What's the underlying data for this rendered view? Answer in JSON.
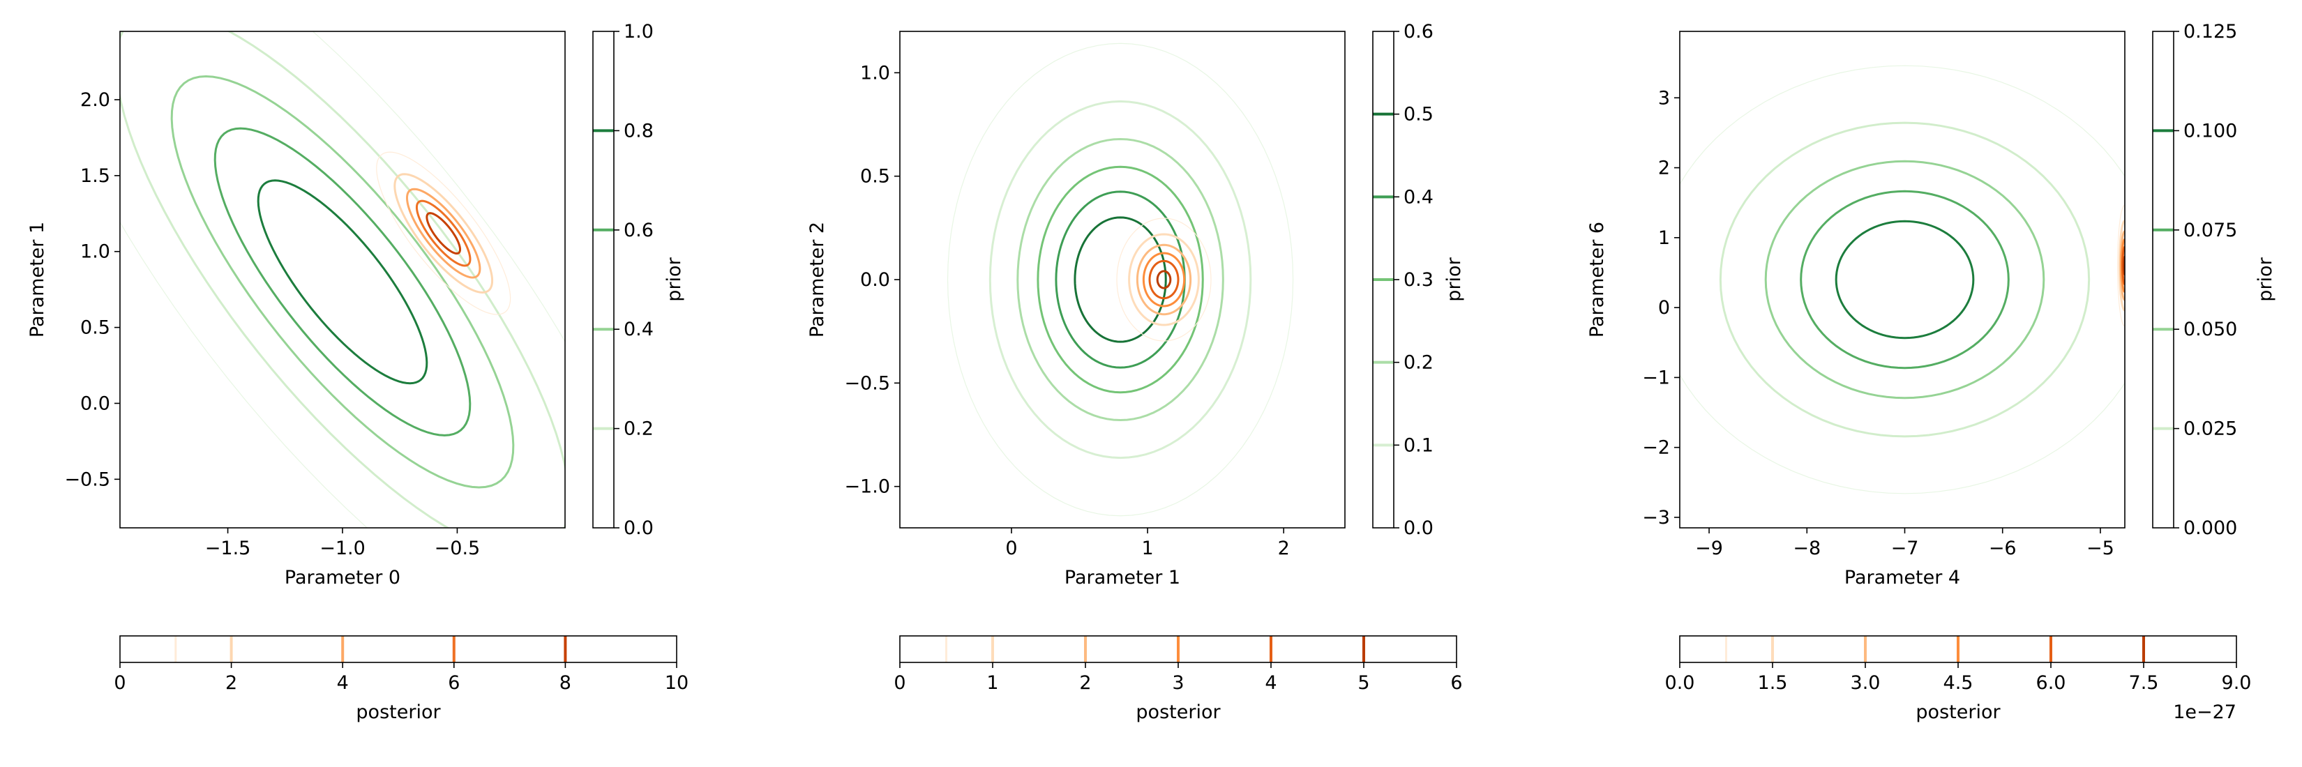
{
  "chart_data": [
    {
      "type": "contour",
      "xlabel": "Parameter 0",
      "ylabel": "Parameter 1",
      "xlim": [
        -1.97,
        -0.03
      ],
      "ylim": [
        -0.82,
        2.45
      ],
      "xticks": [
        -1.5,
        -1.0,
        -0.5
      ],
      "xtick_labels": [
        "−1.5",
        "−1.0",
        "−0.5"
      ],
      "yticks": [
        -0.5,
        0.0,
        0.5,
        1.0,
        1.5,
        2.0
      ],
      "ytick_labels": [
        "−0.5",
        "0.0",
        "0.5",
        "1.0",
        "1.5",
        "2.0"
      ],
      "prior": {
        "label": "prior",
        "colormap": "greens",
        "range": [
          0.0,
          1.0
        ],
        "ticks": [
          0.0,
          0.2,
          0.4,
          0.6,
          0.8,
          1.0
        ],
        "tick_labels": [
          "0.0",
          "0.2",
          "0.4",
          "0.6",
          "0.8",
          "1.0"
        ],
        "levels": [
          0.2,
          0.4,
          0.6,
          0.8
        ],
        "center": [
          -1.0,
          0.8
        ],
        "sigma": [
          0.55,
          1.0
        ],
        "rho": -0.8
      },
      "posterior": {
        "label": "posterior",
        "colormap": "oranges",
        "range": [
          0,
          10
        ],
        "ticks": [
          0,
          2,
          4,
          6,
          8,
          10
        ],
        "tick_labels": [
          "0",
          "2",
          "4",
          "6",
          "8",
          "10"
        ],
        "levels": [
          2,
          4,
          6,
          8
        ],
        "center": [
          -0.56,
          1.12
        ],
        "sigma": [
          0.12,
          0.22
        ],
        "rho": -0.8,
        "peak": 9.6
      }
    },
    {
      "type": "contour",
      "xlabel": "Parameter 1",
      "ylabel": "Parameter 2",
      "xlim": [
        -0.82,
        2.45
      ],
      "ylim": [
        -1.2,
        1.2
      ],
      "xticks": [
        0,
        1,
        2
      ],
      "xtick_labels": [
        "0",
        "1",
        "2"
      ],
      "yticks": [
        -1.0,
        -0.5,
        0.0,
        0.5,
        1.0
      ],
      "ytick_labels": [
        "−1.0",
        "−0.5",
        "0.0",
        "0.5",
        "1.0"
      ],
      "prior": {
        "label": "prior",
        "colormap": "greens",
        "range": [
          0.0,
          0.6
        ],
        "ticks": [
          0.0,
          0.1,
          0.2,
          0.3,
          0.4,
          0.5,
          0.6
        ],
        "tick_labels": [
          "0.0",
          "0.1",
          "0.2",
          "0.3",
          "0.4",
          "0.5",
          "0.6"
        ],
        "levels": [
          0.1,
          0.2,
          0.3,
          0.4,
          0.5
        ],
        "center": [
          0.8,
          0.0
        ],
        "sigma": [
          0.5,
          0.45
        ],
        "rho": 0.0
      },
      "posterior": {
        "label": "posterior",
        "colormap": "oranges",
        "range": [
          0,
          6
        ],
        "ticks": [
          0,
          1,
          2,
          3,
          4,
          5,
          6
        ],
        "tick_labels": [
          "0",
          "1",
          "2",
          "3",
          "4",
          "5",
          "6"
        ],
        "levels": [
          1,
          2,
          3,
          4,
          5
        ],
        "center": [
          1.12,
          0.0
        ],
        "sigma": [
          0.14,
          0.12
        ],
        "rho": 0.0,
        "peak": 5.3
      }
    },
    {
      "type": "contour",
      "xlabel": "Parameter 4",
      "ylabel": "Parameter 6",
      "xlim": [
        -9.3,
        -4.75
      ],
      "ylim": [
        -3.15,
        3.95
      ],
      "xticks": [
        -9,
        -8,
        -7,
        -6,
        -5
      ],
      "xtick_labels": [
        "−9",
        "−8",
        "−7",
        "−6",
        "−5"
      ],
      "yticks": [
        -3,
        -2,
        -1,
        0,
        1,
        2,
        3
      ],
      "ytick_labels": [
        "−3",
        "−2",
        "−1",
        "0",
        "1",
        "2",
        "3"
      ],
      "prior": {
        "label": "prior",
        "colormap": "greens",
        "range": [
          0.0,
          0.125
        ],
        "ticks": [
          0.0,
          0.025,
          0.05,
          0.075,
          0.1,
          0.125
        ],
        "tick_labels": [
          "0.000",
          "0.025",
          "0.050",
          "0.075",
          "0.100",
          "0.125"
        ],
        "levels": [
          0.025,
          0.05,
          0.075,
          0.1
        ],
        "center": [
          -7.0,
          0.4
        ],
        "sigma": [
          1.05,
          1.25
        ],
        "rho": 0.0
      },
      "posterior": {
        "label": "posterior",
        "colormap": "oranges",
        "range": [
          0.0,
          9.0
        ],
        "ticks": [
          0.0,
          1.5,
          3.0,
          4.5,
          6.0,
          7.5,
          9.0
        ],
        "tick_labels": [
          "0.0",
          "1.5",
          "3.0",
          "4.5",
          "6.0",
          "7.5",
          "9.0"
        ],
        "levels": [
          1.5,
          3.0,
          4.5,
          6.0,
          7.5
        ],
        "offset_text": "1e−27",
        "center": [
          -4.75,
          0.6
        ],
        "sigma": [
          0.03,
          0.35
        ],
        "rho": 0.0,
        "peak": 8.0
      }
    }
  ]
}
